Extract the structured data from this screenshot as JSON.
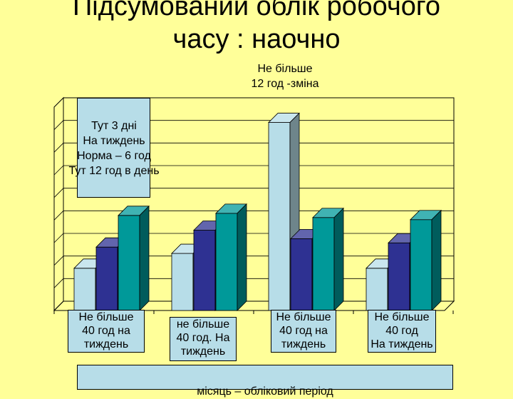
{
  "title_line1": "Підсумований облік робочого",
  "title_line2": "часу : наочно",
  "callout_top": "Не більше\n12 год -зміна",
  "note_box": "Тут 3 дні\nНа тиждень\nНорма – 6 год\nТут 12 год в день",
  "category_labels": [
    "Не більше\n40 год на\nтиждень",
    "не більше\n40 год. На\nтиждень",
    "Не більше\n40 год на\nтиждень",
    "Не більше\n40 год\nНа тиждень"
  ],
  "xlabel": "місяць – обліковий період",
  "colors": {
    "light": "#b7dde8",
    "navy": "#2e3192",
    "teal": "#009999",
    "background": "#ffff99"
  },
  "chart_data": {
    "type": "bar",
    "categories": [
      "",
      "",
      "",
      ""
    ],
    "series": [
      {
        "name": "",
        "values": [
          20,
          27,
          89,
          20
        ]
      },
      {
        "name": "",
        "values": [
          30,
          38,
          34,
          32
        ]
      },
      {
        "name": "",
        "values": [
          45,
          46,
          44,
          43
        ]
      }
    ],
    "ylim": [
      0,
      100
    ],
    "grid": true,
    "legend": "none"
  }
}
